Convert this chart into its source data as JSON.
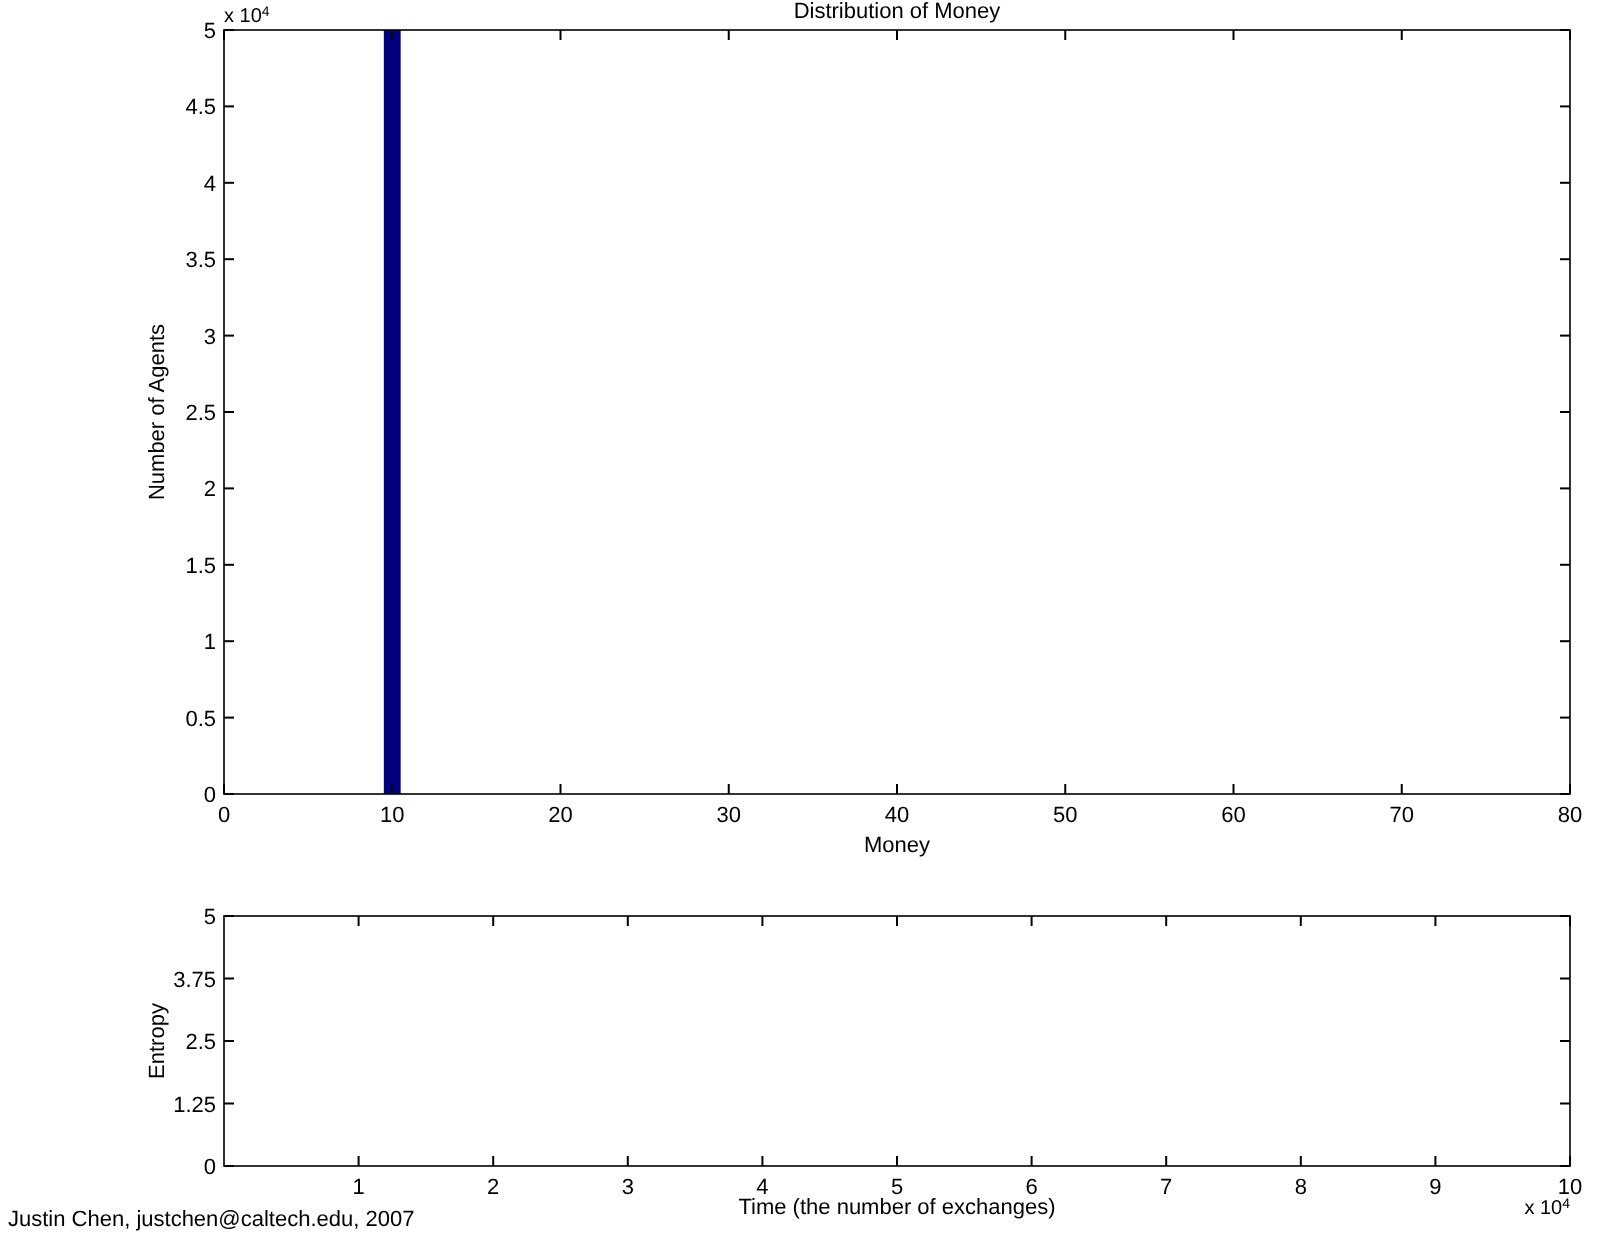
{
  "chart_data": [
    {
      "type": "histogram",
      "title": "Distribution of Money",
      "xlabel": "Money",
      "ylabel": "Number of Agents",
      "bins": [
        9.5,
        10.5
      ],
      "values": [
        5
      ],
      "color": "#00007f",
      "xlim": [
        0,
        80
      ],
      "xticks": [
        0,
        10,
        20,
        30,
        40,
        50,
        60,
        70,
        80
      ],
      "ylim": [
        0,
        5
      ],
      "yticks": [
        0,
        0.5,
        1,
        1.5,
        2,
        2.5,
        3,
        3.5,
        4,
        4.5,
        5
      ],
      "annotations": [
        "x 10$^{4}$"
      ]
    },
    {
      "type": "line",
      "xlabel": "Time (the number of exchanges)",
      "ylabel": "Entropy",
      "xlim": [
        0,
        10
      ],
      "xticks": [
        1,
        2,
        3,
        4,
        5,
        6,
        7,
        8,
        9,
        10
      ],
      "ylim": [
        0,
        5
      ],
      "yticks": [
        0,
        1.25,
        2.5,
        3.75,
        5
      ],
      "annotations": [
        "x 10$^{4}$",
        "Justin Chen, justchen@caltech.edu, 2007"
      ]
    }
  ]
}
